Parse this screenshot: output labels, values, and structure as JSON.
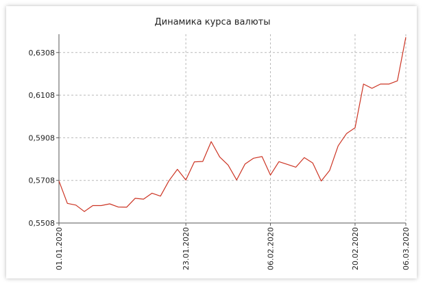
{
  "chart_data": {
    "type": "line",
    "title": "Динамика курса валюты",
    "xlabel": "",
    "ylabel": "",
    "x_ticks": [
      "01.01.2020",
      "23.01.2020",
      "06.02.2020",
      "20.02.2020",
      "06.03.2020"
    ],
    "y_ticks": [
      "0,5508",
      "0,5708",
      "0,5908",
      "0,6108",
      "0,6308"
    ],
    "ylim": [
      0.5508,
      0.6394
    ],
    "grid": true,
    "colors": {
      "line": "#cc3322",
      "grid": "#b8b8b8",
      "axis": "#555555"
    },
    "series": [
      {
        "values": [
          0.5705,
          0.56,
          0.5592,
          0.5562,
          0.559,
          0.559,
          0.5598,
          0.5583,
          0.5582,
          0.5624,
          0.562,
          0.5648,
          0.5634,
          0.5706,
          0.576,
          0.571,
          0.5795,
          0.5797,
          0.589,
          0.5818,
          0.578,
          0.571,
          0.5785,
          0.5812,
          0.582,
          0.5733,
          0.5796,
          0.5783,
          0.577,
          0.5815,
          0.579,
          0.5705,
          0.5755,
          0.587,
          0.5928,
          0.5955,
          0.616,
          0.614,
          0.616,
          0.616,
          0.6175,
          0.638
        ]
      }
    ]
  }
}
